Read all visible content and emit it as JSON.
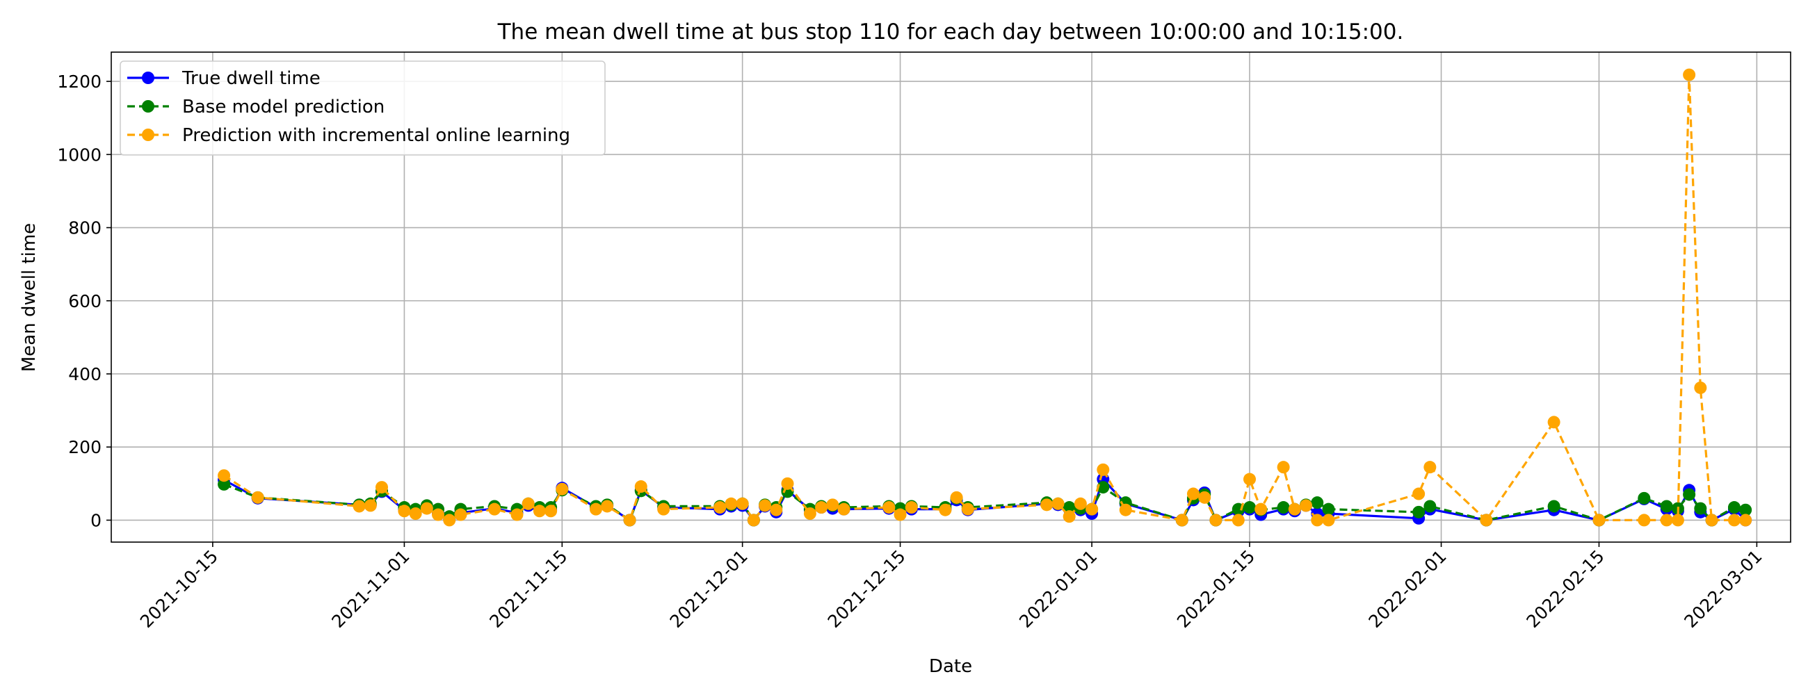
{
  "chart_data": {
    "type": "line",
    "title": "The mean dwell time at bus stop 110 for each day between 10:00:00 and 10:15:00.",
    "xlabel": "Date",
    "ylabel": "Mean dwell time",
    "xlim": [
      "2021-10-06",
      "2022-03-04"
    ],
    "ylim": [
      -60,
      1280
    ],
    "x_ticks": [
      "2021-10-15",
      "2021-11-01",
      "2021-11-15",
      "2021-12-01",
      "2021-12-15",
      "2022-01-01",
      "2022-01-15",
      "2022-02-01",
      "2022-02-15",
      "2022-03-01"
    ],
    "y_ticks": [
      0,
      200,
      400,
      600,
      800,
      1000,
      1200
    ],
    "grid": true,
    "legend_position": "top-left",
    "x": [
      "2021-10-16",
      "2021-10-19",
      "2021-10-28",
      "2021-10-29",
      "2021-10-30",
      "2021-11-01",
      "2021-11-02",
      "2021-11-03",
      "2021-11-04",
      "2021-11-05",
      "2021-11-06",
      "2021-11-09",
      "2021-11-11",
      "2021-11-12",
      "2021-11-13",
      "2021-11-14",
      "2021-11-15",
      "2021-11-18",
      "2021-11-19",
      "2021-11-21",
      "2021-11-22",
      "2021-11-24",
      "2021-11-29",
      "2021-11-30",
      "2021-12-01",
      "2021-12-02",
      "2021-12-03",
      "2021-12-04",
      "2021-12-05",
      "2021-12-07",
      "2021-12-08",
      "2021-12-09",
      "2021-12-10",
      "2021-12-14",
      "2021-12-15",
      "2021-12-16",
      "2021-12-19",
      "2021-12-20",
      "2021-12-21",
      "2021-12-28",
      "2021-12-29",
      "2021-12-30",
      "2021-12-31",
      "2022-01-01",
      "2022-01-02",
      "2022-01-04",
      "2022-01-09",
      "2022-01-10",
      "2022-01-11",
      "2022-01-12",
      "2022-01-14",
      "2022-01-15",
      "2022-01-16",
      "2022-01-18",
      "2022-01-19",
      "2022-01-20",
      "2022-01-21",
      "2022-01-22",
      "2022-01-30",
      "2022-01-31",
      "2022-02-05",
      "2022-02-11",
      "2022-02-15",
      "2022-02-19",
      "2022-02-21",
      "2022-02-22",
      "2022-02-23",
      "2022-02-24",
      "2022-02-25",
      "2022-02-27",
      "2022-02-28"
    ],
    "series": [
      {
        "name": "True dwell time",
        "color": "#0000ff",
        "style": "solid",
        "values": [
          110,
          60,
          42,
          42,
          78,
          28,
          22,
          35,
          18,
          2,
          20,
          32,
          20,
          40,
          30,
          28,
          88,
          35,
          40,
          0,
          82,
          35,
          30,
          38,
          40,
          0,
          38,
          22,
          82,
          28,
          35,
          32,
          30,
          32,
          28,
          30,
          30,
          55,
          28,
          45,
          42,
          30,
          28,
          18,
          112,
          45,
          0,
          55,
          75,
          0,
          25,
          30,
          15,
          30,
          25,
          40,
          18,
          18,
          5,
          30,
          0,
          28,
          0,
          58,
          30,
          25,
          82,
          22,
          0,
          30,
          0
        ]
      },
      {
        "name": "Base model prediction",
        "color": "#008000",
        "style": "dashed",
        "values": [
          98,
          62,
          42,
          45,
          80,
          35,
          30,
          40,
          30,
          10,
          30,
          38,
          30,
          45,
          35,
          35,
          82,
          38,
          42,
          0,
          80,
          38,
          38,
          42,
          45,
          0,
          42,
          35,
          78,
          30,
          38,
          40,
          35,
          38,
          32,
          38,
          35,
          60,
          35,
          48,
          45,
          35,
          32,
          30,
          90,
          48,
          0,
          60,
          70,
          0,
          30,
          35,
          28,
          35,
          30,
          42,
          48,
          30,
          22,
          38,
          0,
          38,
          0,
          60,
          38,
          32,
          70,
          32,
          0,
          35,
          28
        ]
      },
      {
        "name": "Prediction with incremental online learning",
        "color": "#ffa500",
        "style": "dashed",
        "values": [
          122,
          62,
          38,
          40,
          90,
          25,
          18,
          32,
          15,
          0,
          15,
          30,
          15,
          45,
          25,
          25,
          85,
          30,
          38,
          0,
          92,
          30,
          35,
          45,
          45,
          0,
          40,
          28,
          100,
          18,
          35,
          42,
          30,
          35,
          15,
          35,
          28,
          62,
          30,
          42,
          45,
          10,
          45,
          30,
          138,
          28,
          0,
          72,
          62,
          0,
          0,
          112,
          30,
          145,
          30,
          40,
          0,
          0,
          72,
          145,
          0,
          268,
          0,
          0,
          0,
          0,
          1218,
          362,
          0,
          0,
          0
        ]
      }
    ]
  }
}
